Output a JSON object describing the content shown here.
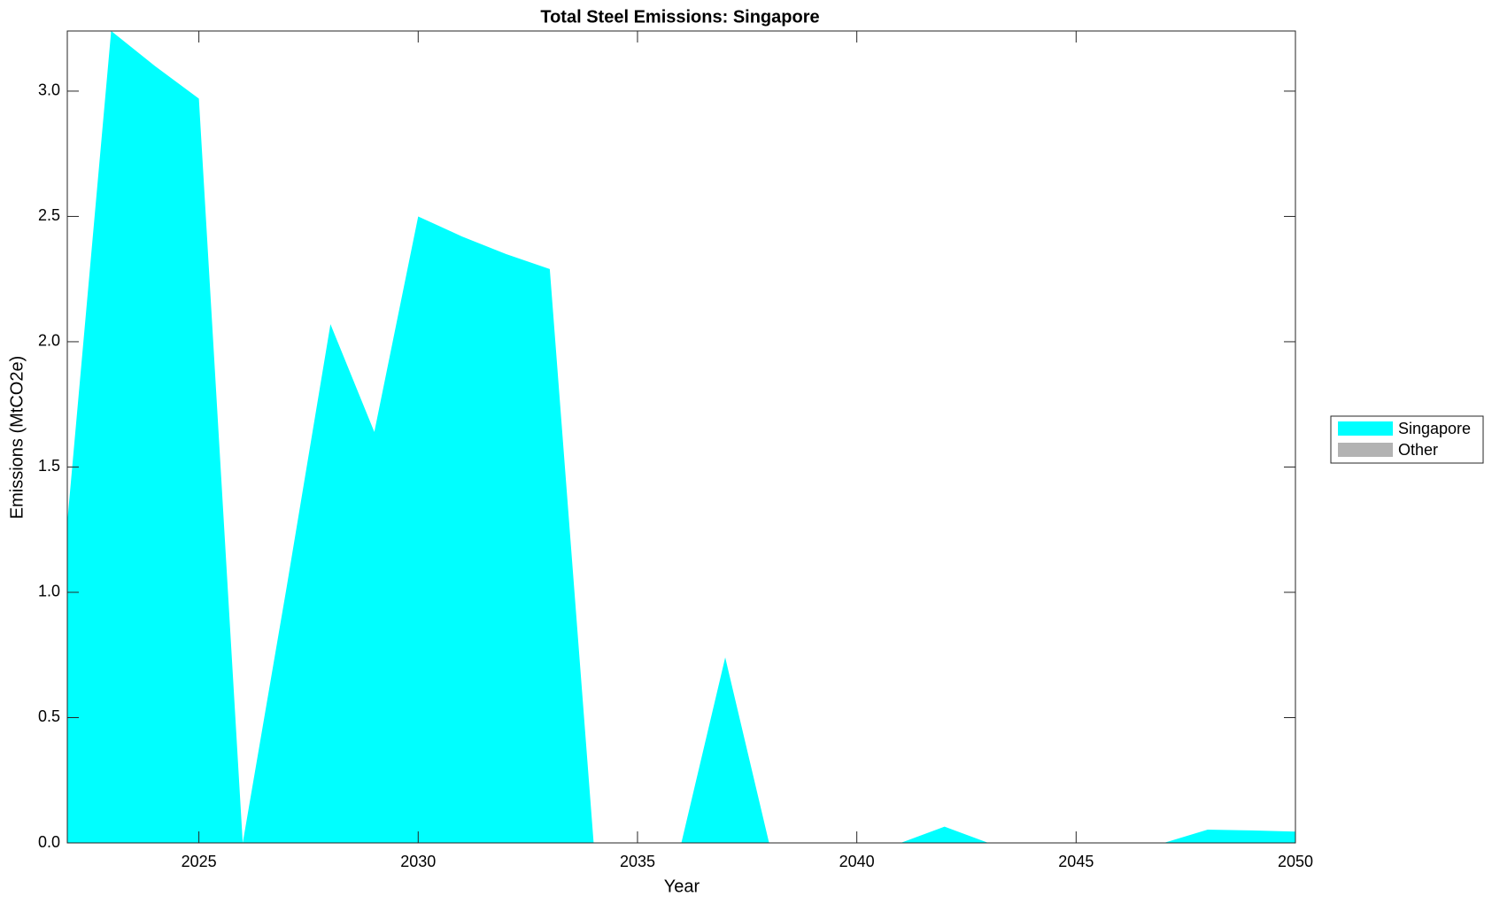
{
  "chart_data": {
    "type": "area",
    "stacked": true,
    "title": "Total Steel Emissions: Singapore",
    "xlabel": "Year",
    "ylabel": "Emissions (MtCO2e)",
    "x": [
      2022,
      2023,
      2024,
      2025,
      2026,
      2027,
      2028,
      2029,
      2030,
      2031,
      2032,
      2033,
      2034,
      2035,
      2036,
      2037,
      2038,
      2039,
      2040,
      2041,
      2042,
      2043,
      2044,
      2045,
      2046,
      2047,
      2048,
      2049,
      2050
    ],
    "series": [
      {
        "name": "Singapore",
        "color": "#00ffff",
        "values": [
          1.28,
          3.24,
          3.1,
          2.97,
          0,
          1.02,
          2.07,
          1.64,
          2.5,
          2.42,
          2.35,
          2.29,
          0,
          0,
          0,
          0.74,
          0,
          0,
          0,
          0,
          0.065,
          0,
          0,
          0,
          0,
          0,
          0.053,
          0.05,
          0.045
        ]
      },
      {
        "name": "Other",
        "color": "#b3b3b3",
        "values": [
          0,
          0,
          0,
          0,
          0,
          0,
          0,
          0,
          0,
          0,
          0,
          0,
          0,
          0,
          0,
          0,
          0,
          0,
          0,
          0,
          0,
          0,
          0,
          0,
          0,
          0,
          0,
          0,
          0
        ]
      }
    ],
    "xlim": [
      2022,
      2050
    ],
    "xticks": [
      2025,
      2030,
      2035,
      2040,
      2045,
      2050
    ],
    "ylim": [
      0,
      3.24
    ],
    "yticks": [
      {
        "value": 0,
        "label": "0.0"
      },
      0.5,
      {
        "value": 1,
        "label": "1.0"
      },
      1.5,
      {
        "value": 2,
        "label": "2.0"
      },
      2.5,
      {
        "value": 3,
        "label": "3.0"
      }
    ],
    "legend": "outside-right"
  }
}
